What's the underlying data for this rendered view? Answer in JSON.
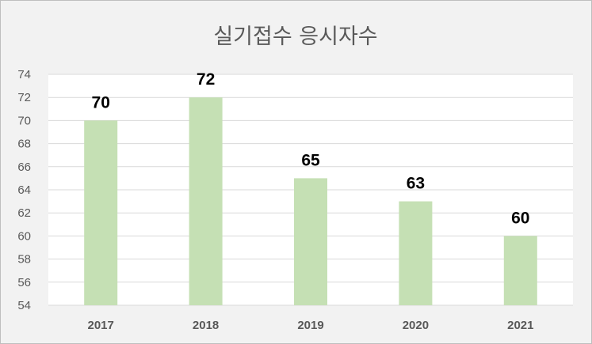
{
  "chart_data": {
    "type": "bar",
    "title": "실기접수 응시자수",
    "xlabel": "",
    "ylabel": "",
    "categories": [
      "2017",
      "2018",
      "2019",
      "2020",
      "2021"
    ],
    "values": [
      70,
      72,
      65,
      63,
      60
    ],
    "ylim": [
      54,
      74
    ],
    "yticks": [
      54,
      56,
      58,
      60,
      62,
      64,
      66,
      68,
      70,
      72,
      74
    ],
    "grid": true,
    "legend": "none",
    "data_labels": true,
    "colors": {
      "bar": "#c5e0b4",
      "grid": "#d9d9d9",
      "background": "#f2f2f2",
      "plot_background": "#ffffff"
    }
  }
}
